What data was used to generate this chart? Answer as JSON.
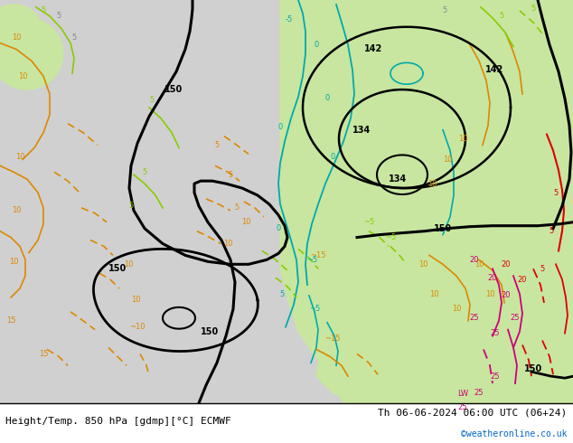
{
  "title_left": "Height/Temp. 850 hPa [gdmp][°C] ECMWF",
  "title_right": "Th 06-06-2024 06:00 UTC (06+24)",
  "credit": "©weatheronline.co.uk",
  "fig_width": 6.34,
  "fig_height": 4.9,
  "dpi": 100,
  "label_fontsize": 8,
  "credit_color": "#0066cc",
  "map_bg_light_green": "#c8e6a0",
  "map_bg_gray": "#c0c0c0",
  "map_bg_white": "#e8e8e8",
  "map_bg_dark_gray": "#a0a0a0"
}
